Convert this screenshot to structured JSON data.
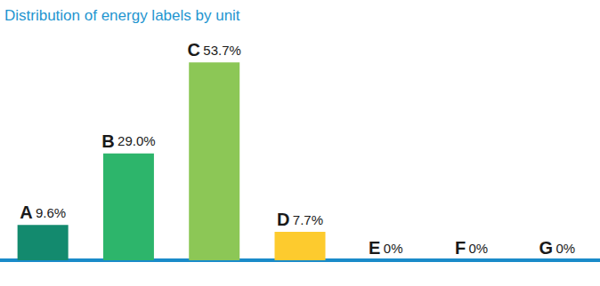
{
  "chart_data": {
    "type": "bar",
    "title": "Distribution of energy labels by unit",
    "categories": [
      "A",
      "B",
      "C",
      "D",
      "E",
      "F",
      "G"
    ],
    "values": [
      9.6,
      29.0,
      53.7,
      7.7,
      0,
      0,
      0
    ],
    "value_labels": [
      "9.6%",
      "29.0%",
      "53.7%",
      "7.7%",
      "0%",
      "0%",
      "0%"
    ],
    "colors": [
      "#138a6e",
      "#2db56b",
      "#8cc756",
      "#fdcb2e",
      "#f7a21b",
      "#ef6c2c",
      "#e2261d"
    ],
    "ylim": [
      0,
      60
    ],
    "grid": false,
    "data_labels": true,
    "tick_labels": false
  }
}
